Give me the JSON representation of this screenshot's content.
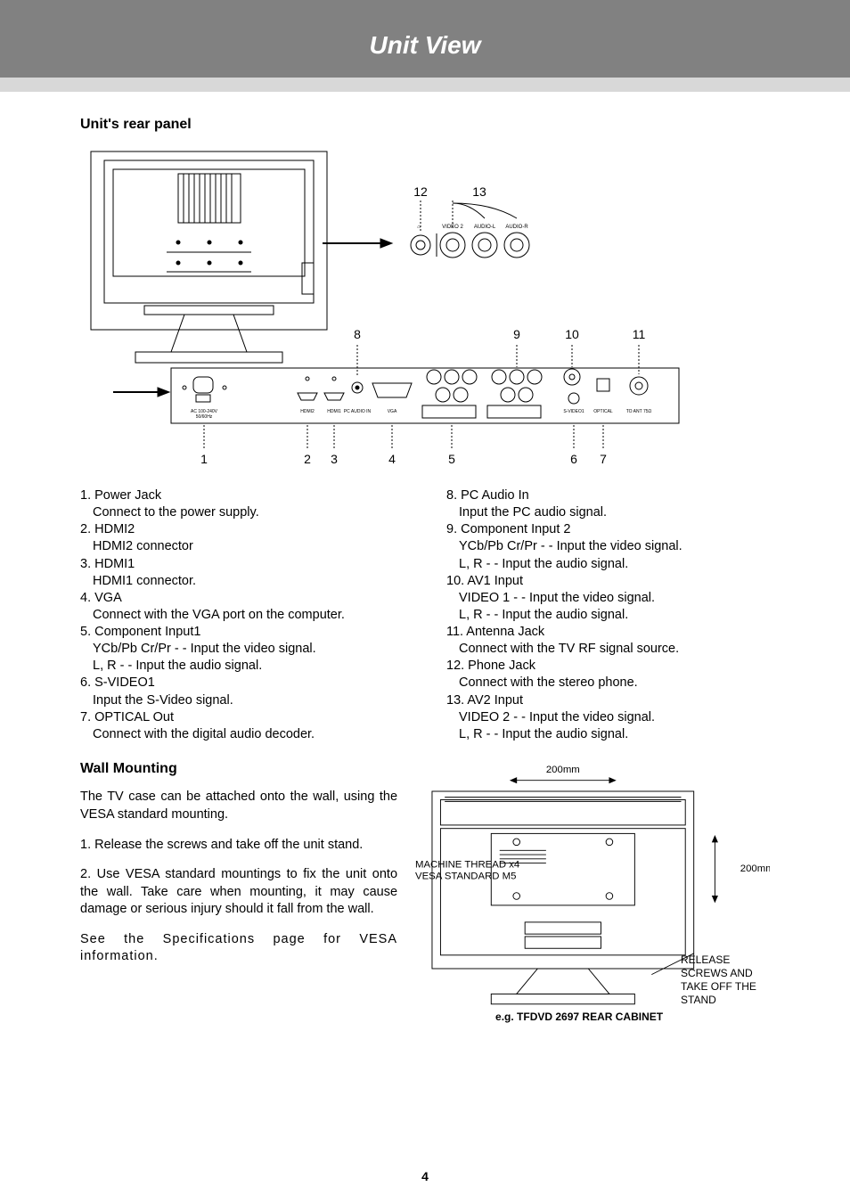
{
  "header": {
    "title": "Unit View"
  },
  "rear_panel": {
    "section_title": "Unit's rear panel",
    "callouts_top": {
      "n12": "12",
      "n13": "13"
    },
    "callouts_mid": {
      "n8": "8",
      "n9": "9",
      "n10": "10",
      "n11": "11"
    },
    "callouts_bot": {
      "n1": "1",
      "n2": "2",
      "n3": "3",
      "n4": "4",
      "n5": "5",
      "n6": "6",
      "n7": "7"
    },
    "port_labels": {
      "video2": "VIDEO 2",
      "audioL": "AUDIO-L",
      "audioR": "AUDIO-R",
      "ac": "AC 100-240V\n50/60Hz",
      "hdmi2": "HDMI2",
      "hdmi1": "HDMI1",
      "pcaudio": "PC AUDIO IN",
      "vga": "VGA",
      "svideo1": "S-VIDEO1",
      "optical": "OPTICAL",
      "ant": "TO ANT 75Ω"
    }
  },
  "left_items": [
    {
      "n": "1.",
      "t": "Power Jack",
      "d": [
        "Connect to the power supply."
      ]
    },
    {
      "n": "2.",
      "t": "HDMI2",
      "d": [
        "HDMI2 connector"
      ]
    },
    {
      "n": "3.",
      "t": "HDMI1",
      "d": [
        "HDMI1 connector."
      ]
    },
    {
      "n": "4.",
      "t": "VGA",
      "d": [
        "Connect with the VGA port on the computer."
      ]
    },
    {
      "n": "5.",
      "t": "Component Input1",
      "d": [
        "YCb/Pb Cr/Pr - - Input the video signal.",
        "L, R - - Input the audio signal."
      ]
    },
    {
      "n": "6.",
      "t": "S-VIDEO1",
      "d": [
        "Input the S-Video signal."
      ]
    },
    {
      "n": "7.",
      "t": "OPTICAL Out",
      "d": [
        "Connect with the digital audio decoder."
      ]
    }
  ],
  "right_items": [
    {
      "n": "8.",
      "t": "PC Audio In",
      "d": [
        "Input the PC audio signal."
      ]
    },
    {
      "n": "9.",
      "t": "Component Input 2",
      "d": [
        "YCb/Pb Cr/Pr - - Input the video signal.",
        "L, R - - Input the audio signal."
      ]
    },
    {
      "n": "10.",
      "t": "AV1 Input",
      "d": [
        "VIDEO 1 - - Input the video signal.",
        "L, R - - Input the audio signal."
      ]
    },
    {
      "n": "11.",
      "t": "Antenna Jack",
      "d": [
        "Connect with the TV RF signal source."
      ]
    },
    {
      "n": "12.",
      "t": "Phone Jack",
      "d": [
        "Connect with the stereo phone."
      ]
    },
    {
      "n": "13.",
      "t": "AV2 Input",
      "d": [
        "VIDEO 2 - - Input the video signal.",
        "L, R - - Input the audio signal."
      ]
    }
  ],
  "wall": {
    "title": "Wall Mounting",
    "p1": "The TV case can be attached onto the wall, using the VESA standard mounting.",
    "p2": "1. Release the screws and take off the unit stand.",
    "p3": "2. Use VESA standard mountings to fix the unit onto the wall. Take care when mounting, it may cause damage or serious injury should it fall from the wall.",
    "p4": "See the Specifications page for  VESA information.",
    "dim_h": "200mm",
    "dim_v": "200mm",
    "thread1": "MACHINE THREAD x4",
    "thread2": "VESA STANDARD M5",
    "release": "RELEASE SCREWS AND TAKE OFF THE STAND",
    "caption": "e.g. TFDVD 2697 REAR CABINET"
  },
  "page_number": "4",
  "colors": {
    "header_bg": "#818181",
    "underline_bg": "#d8d8d8",
    "text": "#000000",
    "header_text": "#ffffff"
  }
}
